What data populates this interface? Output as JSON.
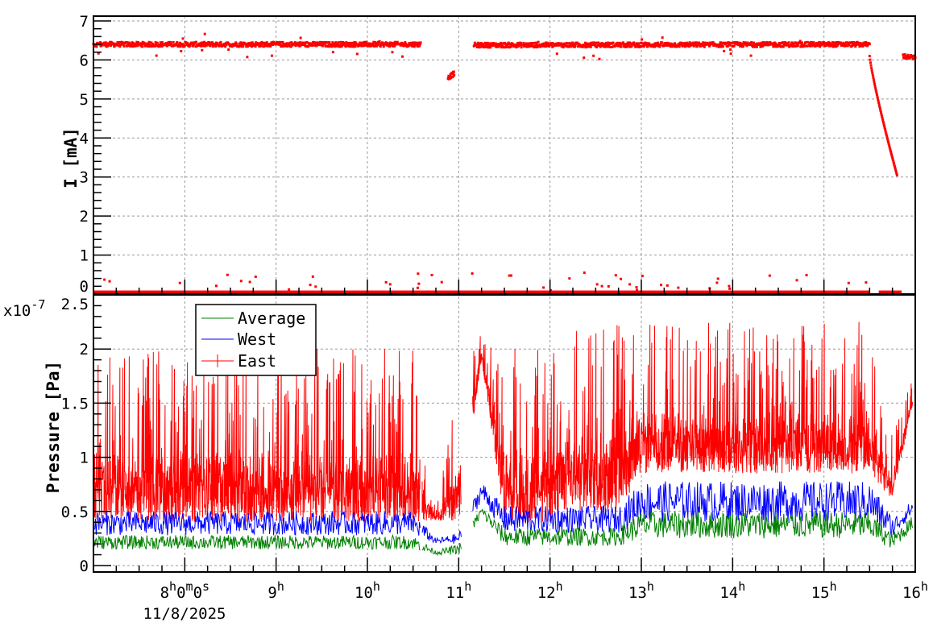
{
  "chart_data": [
    {
      "type": "scatter",
      "ylabel": "I [mA]",
      "ylim": [
        0,
        7
      ],
      "yticks": [
        "0",
        "1",
        "2",
        "3",
        "4",
        "5",
        "6",
        "7"
      ],
      "xlim": [
        "7:00",
        "16:00"
      ],
      "grid": true,
      "color": "#ff0000",
      "series": [
        {
          "segments": [
            {
              "start": "7:00",
              "end": "10:35",
              "from": 6.4,
              "to": 6.4
            },
            {
              "start": "10:53",
              "end": "10:57",
              "from": 5.55,
              "to": 5.65
            },
            {
              "start": "11:10",
              "end": "15:30",
              "from": 6.38,
              "to": 6.4
            },
            {
              "start": "15:30",
              "end": "15:48",
              "from": 6.1,
              "to": 3.05
            },
            {
              "start": "15:52",
              "end": "16:00",
              "from": 6.1,
              "to": 6.05
            }
          ],
          "baseline_level": 0.05
        }
      ]
    },
    {
      "type": "line",
      "ylabel": "Pressure [Pa]",
      "yscale_label": "x10",
      "yscale_exponent": "-7",
      "ylim": [
        0,
        2.5
      ],
      "yticks": [
        "0",
        "0.5",
        "1",
        "1.5",
        "2",
        "2.5"
      ],
      "xlim": [
        "7:00",
        "16:00"
      ],
      "xticks": [
        {
          "time": "8:00",
          "label": "8h0m0s"
        },
        {
          "time": "9:00",
          "label": "9h"
        },
        {
          "time": "10:00",
          "label": "10h"
        },
        {
          "time": "11:00",
          "label": "11h"
        },
        {
          "time": "12:00",
          "label": "12h"
        },
        {
          "time": "13:00",
          "label": "13h"
        },
        {
          "time": "14:00",
          "label": "14h"
        },
        {
          "time": "15:00",
          "label": "15h"
        },
        {
          "time": "16:00",
          "label": "16h"
        }
      ],
      "xdate": "11/8/2025",
      "grid": true,
      "legend_position": "top-left",
      "t": [
        "7:00",
        "7:15",
        "7:30",
        "7:45",
        "8:00",
        "8:15",
        "8:30",
        "8:45",
        "9:00",
        "9:15",
        "9:30",
        "9:45",
        "10:00",
        "10:15",
        "10:30",
        "10:45",
        "11:00",
        "11:15",
        "11:30",
        "11:45",
        "12:00",
        "12:15",
        "12:30",
        "12:45",
        "13:00",
        "13:15",
        "13:30",
        "13:45",
        "14:00",
        "14:15",
        "14:30",
        "14:45",
        "15:00",
        "15:15",
        "15:30",
        "15:45",
        "16:00"
      ],
      "series": [
        {
          "name": "Average",
          "color": "#008000",
          "low": [
            0.15,
            0.15,
            0.15,
            0.15,
            0.15,
            0.15,
            0.15,
            0.15,
            0.15,
            0.15,
            0.15,
            0.15,
            0.15,
            0.15,
            0.15,
            0.1,
            0.1,
            0.45,
            0.18,
            0.18,
            0.18,
            0.18,
            0.18,
            0.18,
            0.25,
            0.25,
            0.25,
            0.25,
            0.25,
            0.25,
            0.25,
            0.25,
            0.25,
            0.25,
            0.25,
            0.15,
            0.35
          ],
          "high": [
            0.28,
            0.28,
            0.28,
            0.28,
            0.28,
            0.28,
            0.28,
            0.28,
            0.28,
            0.28,
            0.28,
            0.28,
            0.28,
            0.28,
            0.28,
            0.14,
            0.2,
            0.55,
            0.35,
            0.35,
            0.35,
            0.35,
            0.35,
            0.35,
            0.5,
            0.5,
            0.5,
            0.5,
            0.5,
            0.5,
            0.5,
            0.5,
            0.5,
            0.5,
            0.5,
            0.3,
            0.48
          ]
        },
        {
          "name": "West",
          "color": "#0000ff",
          "low": [
            0.28,
            0.28,
            0.28,
            0.28,
            0.28,
            0.28,
            0.28,
            0.28,
            0.28,
            0.28,
            0.28,
            0.28,
            0.28,
            0.28,
            0.28,
            0.2,
            0.2,
            0.6,
            0.3,
            0.3,
            0.3,
            0.3,
            0.3,
            0.3,
            0.4,
            0.4,
            0.4,
            0.4,
            0.4,
            0.4,
            0.4,
            0.4,
            0.4,
            0.4,
            0.4,
            0.25,
            0.5
          ],
          "high": [
            0.5,
            0.5,
            0.5,
            0.5,
            0.5,
            0.5,
            0.5,
            0.5,
            0.5,
            0.5,
            0.5,
            0.5,
            0.5,
            0.5,
            0.5,
            0.25,
            0.3,
            0.78,
            0.55,
            0.55,
            0.55,
            0.55,
            0.55,
            0.55,
            0.78,
            0.78,
            0.78,
            0.78,
            0.78,
            0.78,
            0.78,
            0.78,
            0.78,
            0.78,
            0.78,
            0.45,
            0.62
          ]
        },
        {
          "name": "East",
          "color": "#ff0000",
          "low": [
            0.4,
            0.4,
            0.4,
            0.4,
            0.4,
            0.4,
            0.4,
            0.4,
            0.4,
            0.4,
            0.4,
            0.4,
            0.4,
            0.4,
            0.4,
            0.42,
            0.4,
            1.9,
            0.4,
            0.4,
            0.4,
            0.5,
            0.5,
            0.5,
            0.85,
            0.85,
            0.85,
            0.85,
            0.85,
            0.85,
            0.85,
            0.85,
            0.85,
            0.85,
            0.85,
            0.6,
            1.6
          ],
          "high": [
            2.0,
            2.0,
            2.0,
            2.0,
            2.0,
            2.0,
            2.0,
            2.0,
            2.0,
            2.0,
            2.0,
            2.0,
            2.0,
            2.0,
            2.0,
            0.5,
            1.75,
            2.15,
            2.0,
            2.0,
            2.0,
            2.25,
            2.25,
            2.25,
            2.25,
            2.25,
            2.25,
            2.25,
            2.25,
            2.25,
            2.25,
            2.25,
            2.25,
            2.25,
            2.25,
            1.2,
            1.8
          ]
        }
      ]
    }
  ]
}
